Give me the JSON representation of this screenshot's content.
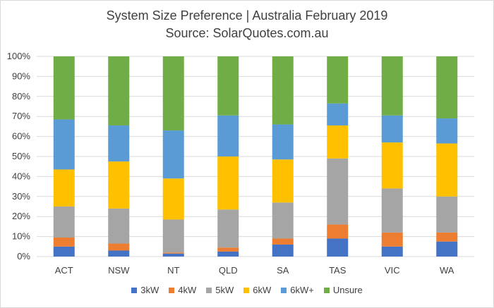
{
  "chart_data": {
    "type": "bar",
    "stacked": true,
    "title": "System Size Preference  | Australia February 2019",
    "subtitle": "Source: SolarQuotes.com.au",
    "categories": [
      "ACT",
      "NSW",
      "NT",
      "QLD",
      "SA",
      "TAS",
      "VIC",
      "WA"
    ],
    "ylim": [
      0,
      100
    ],
    "y_ticks": [
      "0%",
      "10%",
      "20%",
      "30%",
      "40%",
      "50%",
      "60%",
      "70%",
      "80%",
      "90%",
      "100%"
    ],
    "grid": true,
    "legend_position": "bottom",
    "series": [
      {
        "name": "3kW",
        "color": "#4472c4",
        "values": [
          5,
          3,
          1.5,
          2.5,
          6,
          9,
          5,
          7.5
        ]
      },
      {
        "name": "4kW",
        "color": "#ed7d31",
        "values": [
          4.5,
          3.5,
          0.5,
          2,
          3,
          7,
          7,
          4.5
        ]
      },
      {
        "name": "5kW",
        "color": "#a5a5a5",
        "values": [
          15.5,
          17.5,
          16.5,
          19,
          18,
          33,
          22,
          18
        ]
      },
      {
        "name": "6kW",
        "color": "#ffc000",
        "values": [
          18.5,
          23.5,
          20.5,
          26.5,
          21.5,
          16.5,
          23,
          26.5
        ]
      },
      {
        "name": "6kW+",
        "color": "#5b9bd5",
        "values": [
          25,
          18,
          24,
          20.5,
          17.5,
          11,
          13.5,
          12.5
        ]
      },
      {
        "name": "Unsure",
        "color": "#70ad47",
        "values": [
          31.5,
          34.5,
          37,
          29.5,
          34,
          23.5,
          29.5,
          31
        ]
      }
    ]
  }
}
